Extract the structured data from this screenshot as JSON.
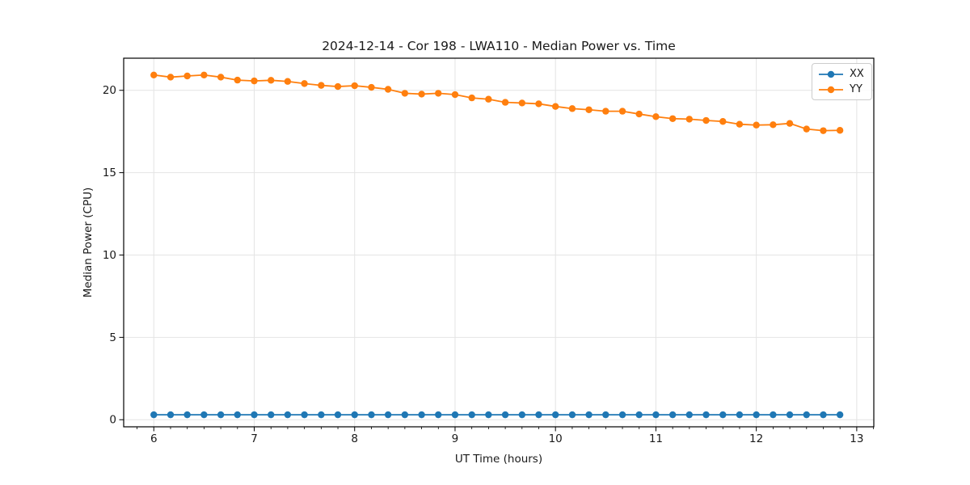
{
  "chart_data": {
    "type": "line",
    "title": "2024-12-14 - Cor 198 - LWA110 - Median Power vs. Time",
    "xlabel": "UT Time (hours)",
    "ylabel": "Median Power (CPU)",
    "x": [
      6.0,
      6.167,
      6.333,
      6.5,
      6.667,
      6.833,
      7.0,
      7.167,
      7.333,
      7.5,
      7.667,
      7.833,
      8.0,
      8.167,
      8.333,
      8.5,
      8.667,
      8.833,
      9.0,
      9.167,
      9.333,
      9.5,
      9.667,
      9.833,
      10.0,
      10.167,
      10.333,
      10.5,
      10.667,
      10.833,
      11.0,
      11.167,
      11.333,
      11.5,
      11.667,
      11.833,
      12.0,
      12.167,
      12.333,
      12.5,
      12.667,
      12.833
    ],
    "series": [
      {
        "name": "XX",
        "color": "#1f77b4",
        "values": [
          0.3,
          0.3,
          0.3,
          0.3,
          0.3,
          0.3,
          0.3,
          0.3,
          0.3,
          0.3,
          0.3,
          0.3,
          0.3,
          0.3,
          0.3,
          0.3,
          0.3,
          0.3,
          0.3,
          0.3,
          0.3,
          0.3,
          0.3,
          0.3,
          0.3,
          0.3,
          0.3,
          0.3,
          0.3,
          0.3,
          0.3,
          0.3,
          0.3,
          0.3,
          0.3,
          0.3,
          0.3,
          0.3,
          0.3,
          0.3,
          0.3,
          0.3
        ]
      },
      {
        "name": "YY",
        "color": "#ff7f0e",
        "values": [
          20.93,
          20.8,
          20.87,
          20.93,
          20.8,
          20.62,
          20.57,
          20.61,
          20.54,
          20.41,
          20.3,
          20.23,
          20.28,
          20.18,
          20.06,
          19.82,
          19.77,
          19.82,
          19.74,
          19.54,
          19.46,
          19.27,
          19.23,
          19.18,
          19.02,
          18.89,
          18.82,
          18.73,
          18.73,
          18.56,
          18.4,
          18.28,
          18.25,
          18.17,
          18.11,
          17.94,
          17.89,
          17.91,
          17.99,
          17.65,
          17.55,
          17.57
        ]
      }
    ],
    "xlim": [
      5.7,
      13.17
    ],
    "ylim": [
      -0.43,
      21.95
    ],
    "xticks": [
      6,
      7,
      8,
      9,
      10,
      11,
      12,
      13
    ],
    "yticks": [
      0,
      5,
      10,
      15,
      20
    ],
    "x_minor_step": 0.16667,
    "grid": true,
    "legend_position": "upper right",
    "marker": "o"
  },
  "style": {
    "grid_color": "#e4e4e4",
    "spine_color": "#000000",
    "tick_color": "#000000",
    "text_color": "#1a1a1a"
  }
}
